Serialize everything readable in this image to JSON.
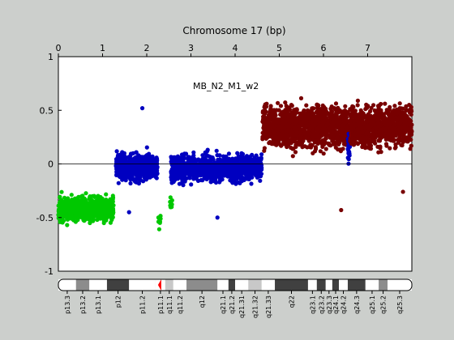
{
  "chart_data": {
    "type": "scatter",
    "title": "Chromosome 17 (bp)",
    "annotation": "MB_N2_M1_w2",
    "x_ticks": [
      "0",
      "1",
      "2",
      "3",
      "4",
      "5",
      "6",
      "7"
    ],
    "y_ticks": [
      "-1",
      "-0.5",
      "0",
      "0.5",
      "1"
    ],
    "xlim": [
      0,
      8.0
    ],
    "ylim": [
      -1,
      1
    ],
    "reference_line": 0,
    "grid": false,
    "colors": {
      "green": "#00c800",
      "blue": "#0000c0",
      "darkred": "#780000",
      "background": "#cccfcc",
      "plot": "#ffffff"
    },
    "segments": [
      {
        "color": "green",
        "x_range": [
          0.0,
          1.25
        ],
        "y_mean": -0.42,
        "y_spread": 0.09,
        "n": 700
      },
      {
        "color": "blue",
        "x_range": [
          1.3,
          2.25
        ],
        "y_mean": -0.03,
        "y_spread": 0.1,
        "n": 600
      },
      {
        "color": "green",
        "x_range": [
          2.25,
          2.32
        ],
        "y_mean": -0.5,
        "y_spread": 0.08,
        "n": 10
      },
      {
        "color": "green",
        "x_range": [
          2.52,
          2.58
        ],
        "y_mean": -0.35,
        "y_spread": 0.08,
        "n": 8
      },
      {
        "color": "blue",
        "x_range": [
          2.55,
          4.6
        ],
        "y_mean": -0.04,
        "y_spread": 0.1,
        "n": 1000
      },
      {
        "color": "darkred",
        "x_range": [
          4.62,
          6.55
        ],
        "y_mean": 0.35,
        "y_spread": 0.16,
        "n": 1100
      },
      {
        "color": "blue",
        "x_range": [
          6.55,
          6.6
        ],
        "y_mean": 0.18,
        "y_spread": 0.12,
        "n": 30
      },
      {
        "color": "darkred",
        "x_range": [
          6.6,
          8.0
        ],
        "y_mean": 0.35,
        "y_spread": 0.15,
        "n": 800
      }
    ],
    "outliers": [
      {
        "x": 1.9,
        "y": 0.52,
        "color": "blue"
      },
      {
        "x": 1.6,
        "y": -0.45,
        "color": "blue"
      },
      {
        "x": 3.6,
        "y": -0.5,
        "color": "blue"
      },
      {
        "x": 6.4,
        "y": -0.43,
        "color": "darkred"
      },
      {
        "x": 7.8,
        "y": -0.26,
        "color": "darkred"
      }
    ],
    "ideogram": {
      "bands": [
        {
          "label": "p13.3",
          "x": [
            0.0,
            0.4
          ],
          "stain": "white"
        },
        {
          "label": "p13.2",
          "x": [
            0.4,
            0.7
          ],
          "stain": "gray"
        },
        {
          "label": "p13.1",
          "x": [
            0.7,
            1.1
          ],
          "stain": "white"
        },
        {
          "label": "p12",
          "x": [
            1.1,
            1.6
          ],
          "stain": "dark"
        },
        {
          "label": "p11.2",
          "x": [
            1.6,
            2.2
          ],
          "stain": "white"
        },
        {
          "label": "p11.1",
          "x": [
            2.2,
            2.42
          ],
          "stain": "centromere"
        },
        {
          "label": "q11.1",
          "x": [
            2.42,
            2.6
          ],
          "stain": "light"
        },
        {
          "label": "q11.2",
          "x": [
            2.6,
            2.9
          ],
          "stain": "white"
        },
        {
          "label": "q12",
          "x": [
            2.9,
            3.6
          ],
          "stain": "gray"
        },
        {
          "label": "q21.1",
          "x": [
            3.6,
            3.85
          ],
          "stain": "white"
        },
        {
          "label": "q21.2",
          "x": [
            3.85,
            4.0
          ],
          "stain": "dark"
        },
        {
          "label": "q21.31",
          "x": [
            4.0,
            4.3
          ],
          "stain": "white"
        },
        {
          "label": "q21.32",
          "x": [
            4.3,
            4.6
          ],
          "stain": "light"
        },
        {
          "label": "q21.33",
          "x": [
            4.6,
            4.9
          ],
          "stain": "white"
        },
        {
          "label": "q22",
          "x": [
            4.9,
            5.65
          ],
          "stain": "dark"
        },
        {
          "label": "q23.1",
          "x": [
            5.65,
            5.85
          ],
          "stain": "white"
        },
        {
          "label": "q23.2",
          "x": [
            5.85,
            6.05
          ],
          "stain": "dark"
        },
        {
          "label": "q23.3",
          "x": [
            6.05,
            6.2
          ],
          "stain": "white"
        },
        {
          "label": "q24.1",
          "x": [
            6.2,
            6.35
          ],
          "stain": "dark"
        },
        {
          "label": "q24.2",
          "x": [
            6.35,
            6.55
          ],
          "stain": "white"
        },
        {
          "label": "q24.3",
          "x": [
            6.55,
            6.95
          ],
          "stain": "dark"
        },
        {
          "label": "q25.1",
          "x": [
            6.95,
            7.25
          ],
          "stain": "white"
        },
        {
          "label": "q25.2",
          "x": [
            7.25,
            7.45
          ],
          "stain": "gray"
        },
        {
          "label": "q25.3",
          "x": [
            7.45,
            8.0
          ],
          "stain": "white"
        }
      ],
      "band_labels": [
        "p13.3",
        "p13.2",
        "p13.1",
        "p12",
        "p11.2",
        "p11.1",
        "q11.1",
        "q11.2",
        "q12",
        "q21.1",
        "q21.2",
        "q21.31",
        "q21.32",
        "q21.33",
        "q22",
        "q23.1",
        "q23.2",
        "q23.3",
        "q24.1",
        "q24.2",
        "q24.3",
        "q25.1",
        "q25.2",
        "q25.3"
      ]
    }
  }
}
